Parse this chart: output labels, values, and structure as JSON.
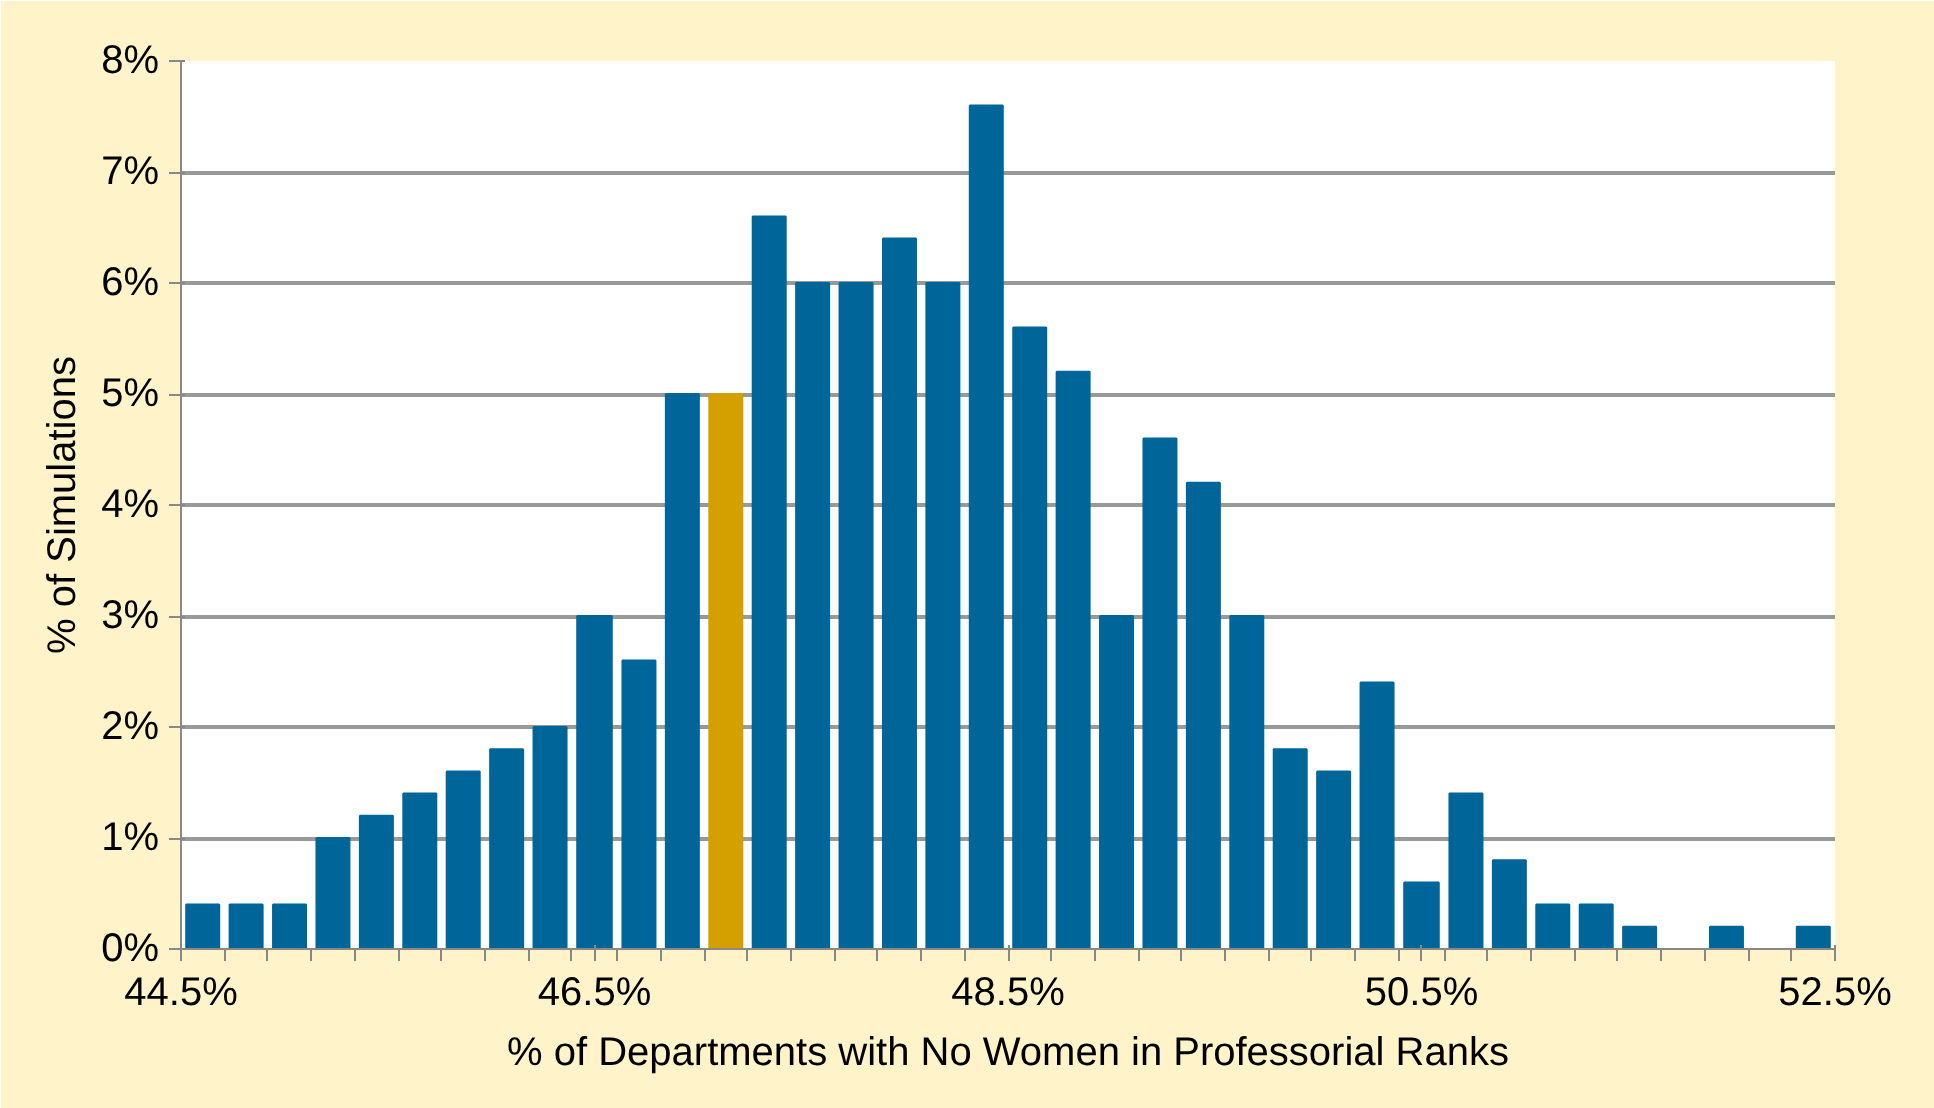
{
  "chart_data": {
    "type": "histogram",
    "xlabel": "% of Departments with No Women in Professorial Ranks",
    "ylabel": "% of Simulations",
    "bins": [
      44.5,
      44.71,
      44.92,
      45.13,
      45.34,
      45.55,
      45.76,
      45.97,
      46.18,
      46.39,
      46.61,
      46.82,
      47.03,
      47.24,
      47.45,
      47.66,
      47.87,
      48.08,
      48.29,
      48.5,
      48.71,
      48.92,
      49.13,
      49.34,
      49.55,
      49.76,
      49.97,
      50.18,
      50.39,
      50.61,
      50.82,
      51.03,
      51.24,
      51.45,
      51.66,
      51.87,
      52.08,
      52.29,
      52.5
    ],
    "values": [
      0.4,
      0.4,
      0.4,
      1.0,
      1.2,
      1.4,
      1.6,
      1.8,
      2.0,
      3.0,
      2.6,
      5.0,
      5.0,
      6.6,
      6.0,
      6.0,
      6.4,
      6.0,
      7.6,
      5.6,
      5.2,
      3.0,
      4.6,
      4.2,
      3.0,
      1.8,
      1.6,
      2.4,
      0.6,
      1.4,
      0.8,
      0.4,
      0.4,
      0.2,
      0,
      0.2,
      0,
      0.2
    ],
    "colors": [
      "#00669a",
      "#00669a",
      "#00669a",
      "#00669a",
      "#00669a",
      "#00669a",
      "#00669a",
      "#00669a",
      "#00669a",
      "#00669a",
      "#00669a",
      "#00669a",
      "#d4a000",
      "#00669a",
      "#00669a",
      "#00669a",
      "#00669a",
      "#00669a",
      "#00669a",
      "#00669a",
      "#00669a",
      "#00669a",
      "#00669a",
      "#00669a",
      "#00669a",
      "#00669a",
      "#00669a",
      "#00669a",
      "#00669a",
      "#00669a",
      "#00669a",
      "#00669a",
      "#00669a",
      "#00669a",
      "#00669a",
      "#00669a",
      "#00669a",
      "#00669a"
    ],
    "xlim": [
      44.5,
      52.5
    ],
    "xticks": [
      {
        "value": 44.5,
        "label": "44.5%"
      },
      {
        "value": 46.5,
        "label": "46.5%"
      },
      {
        "value": 48.5,
        "label": "48.5%"
      },
      {
        "value": 50.5,
        "label": "50.5%"
      },
      {
        "value": 52.5,
        "label": "52.5%"
      }
    ],
    "ylim": [
      0,
      8
    ],
    "yticks": [
      {
        "value": 0,
        "label": "0%"
      },
      {
        "value": 1,
        "label": "1%"
      },
      {
        "value": 2,
        "label": "2%"
      },
      {
        "value": 3,
        "label": "3%"
      },
      {
        "value": 4,
        "label": "4%"
      },
      {
        "value": 5,
        "label": "5%"
      },
      {
        "value": 6,
        "label": "6%"
      },
      {
        "value": 7,
        "label": "7%"
      },
      {
        "value": 8,
        "label": "8%"
      }
    ],
    "grid": "y"
  }
}
